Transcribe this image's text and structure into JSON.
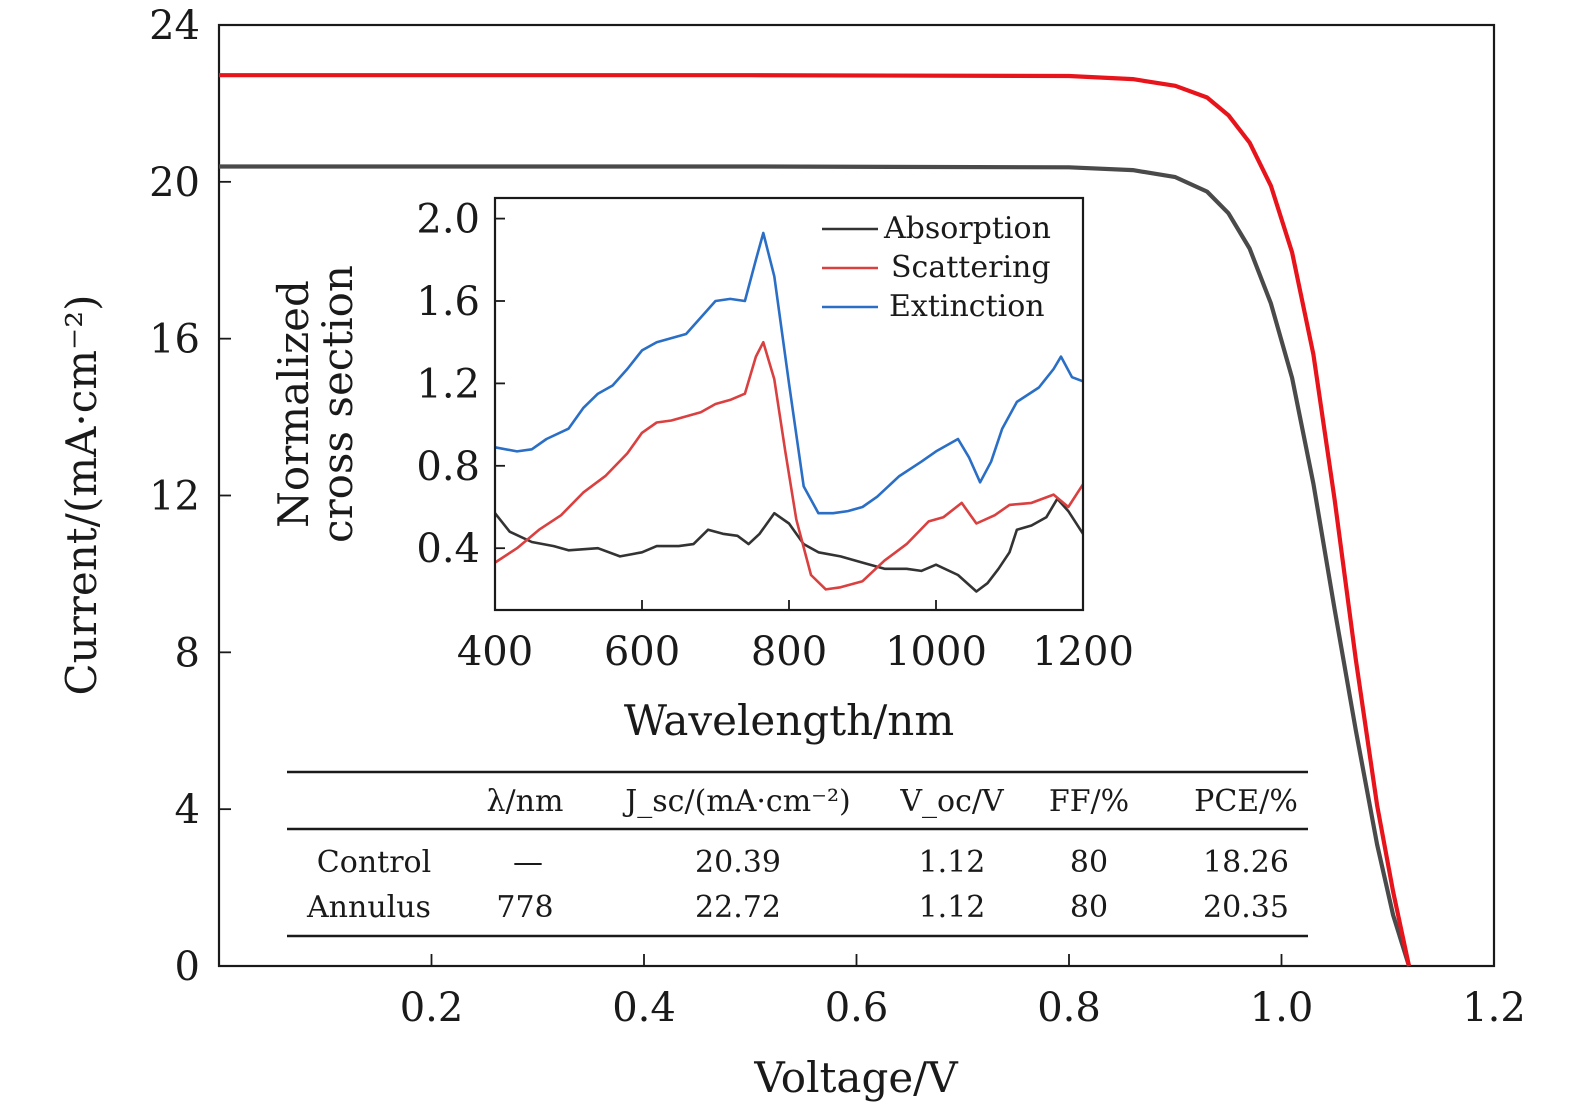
{
  "chart_data": [
    {
      "id": "jv",
      "type": "line",
      "xlabel": "Voltage/V",
      "ylabel": "Current/(mA·cm⁻²)",
      "xlim": [
        0.0,
        1.2
      ],
      "ylim": [
        0,
        24
      ],
      "xticks": [
        0.2,
        0.4,
        0.6,
        0.8,
        1.0,
        1.2
      ],
      "xtick_labels": [
        "0.2",
        "0.4",
        "0.6",
        "0.8",
        "1.0",
        "1.2"
      ],
      "yticks": [
        0,
        4,
        8,
        12,
        16,
        20,
        24
      ],
      "ytick_labels": [
        "0",
        "4",
        "8",
        "12",
        "16",
        "20",
        "24"
      ],
      "series": [
        {
          "name": "Control",
          "color": "#4a4a4a",
          "points": [
            [
              0.0,
              20.39
            ],
            [
              0.5,
              20.39
            ],
            [
              0.8,
              20.37
            ],
            [
              0.86,
              20.3
            ],
            [
              0.9,
              20.12
            ],
            [
              0.93,
              19.75
            ],
            [
              0.95,
              19.2
            ],
            [
              0.97,
              18.3
            ],
            [
              0.99,
              16.9
            ],
            [
              1.01,
              15.0
            ],
            [
              1.03,
              12.3
            ],
            [
              1.05,
              9.1
            ],
            [
              1.07,
              6.0
            ],
            [
              1.09,
              3.1
            ],
            [
              1.105,
              1.3
            ],
            [
              1.12,
              0
            ]
          ]
        },
        {
          "name": "Annulus",
          "color": "#e8141b",
          "points": [
            [
              0.0,
              22.72
            ],
            [
              0.5,
              22.72
            ],
            [
              0.8,
              22.7
            ],
            [
              0.86,
              22.62
            ],
            [
              0.9,
              22.45
            ],
            [
              0.93,
              22.15
            ],
            [
              0.95,
              21.7
            ],
            [
              0.97,
              21.0
            ],
            [
              0.99,
              19.9
            ],
            [
              1.01,
              18.2
            ],
            [
              1.03,
              15.6
            ],
            [
              1.05,
              11.9
            ],
            [
              1.07,
              7.8
            ],
            [
              1.09,
              4.1
            ],
            [
              1.105,
              1.9
            ],
            [
              1.12,
              0
            ]
          ]
        }
      ]
    },
    {
      "id": "inset",
      "type": "line",
      "xlabel": "Wavelength/nm",
      "ylabel": "Normalized cross section",
      "ylabel_lines": [
        "Normalized",
        "cross section"
      ],
      "xlim": [
        400,
        1200
      ],
      "ylim": [
        0.1,
        2.1
      ],
      "xticks": [
        400,
        600,
        800,
        1000,
        1200
      ],
      "xtick_labels": [
        "400",
        "600",
        "800",
        "1000",
        "1200"
      ],
      "yticks": [
        0.4,
        0.8,
        1.2,
        1.6,
        2.0
      ],
      "ytick_labels": [
        "0.4",
        "0.8",
        "1.2",
        "1.6",
        "2.0"
      ],
      "legend_position": "top-right",
      "series": [
        {
          "name": "Absorption",
          "color": "#333333",
          "points": [
            [
              400,
              0.57
            ],
            [
              420,
              0.48
            ],
            [
              450,
              0.43
            ],
            [
              480,
              0.41
            ],
            [
              500,
              0.39
            ],
            [
              540,
              0.4
            ],
            [
              570,
              0.36
            ],
            [
              600,
              0.38
            ],
            [
              620,
              0.41
            ],
            [
              650,
              0.41
            ],
            [
              670,
              0.42
            ],
            [
              690,
              0.49
            ],
            [
              710,
              0.47
            ],
            [
              730,
              0.46
            ],
            [
              745,
              0.42
            ],
            [
              760,
              0.47
            ],
            [
              780,
              0.57
            ],
            [
              800,
              0.52
            ],
            [
              820,
              0.42
            ],
            [
              840,
              0.38
            ],
            [
              870,
              0.36
            ],
            [
              900,
              0.33
            ],
            [
              930,
              0.3
            ],
            [
              960,
              0.3
            ],
            [
              980,
              0.29
            ],
            [
              1000,
              0.32
            ],
            [
              1030,
              0.27
            ],
            [
              1055,
              0.19
            ],
            [
              1070,
              0.23
            ],
            [
              1085,
              0.3
            ],
            [
              1100,
              0.38
            ],
            [
              1110,
              0.49
            ],
            [
              1130,
              0.51
            ],
            [
              1150,
              0.55
            ],
            [
              1165,
              0.64
            ],
            [
              1180,
              0.58
            ],
            [
              1200,
              0.47
            ]
          ]
        },
        {
          "name": "Scattering",
          "color": "#d9403f",
          "points": [
            [
              400,
              0.33
            ],
            [
              430,
              0.4
            ],
            [
              460,
              0.49
            ],
            [
              490,
              0.56
            ],
            [
              520,
              0.67
            ],
            [
              550,
              0.75
            ],
            [
              580,
              0.86
            ],
            [
              600,
              0.96
            ],
            [
              620,
              1.01
            ],
            [
              640,
              1.02
            ],
            [
              660,
              1.04
            ],
            [
              680,
              1.06
            ],
            [
              700,
              1.1
            ],
            [
              720,
              1.12
            ],
            [
              740,
              1.15
            ],
            [
              755,
              1.33
            ],
            [
              765,
              1.4
            ],
            [
              780,
              1.22
            ],
            [
              795,
              0.87
            ],
            [
              810,
              0.54
            ],
            [
              830,
              0.27
            ],
            [
              850,
              0.2
            ],
            [
              870,
              0.21
            ],
            [
              900,
              0.24
            ],
            [
              930,
              0.34
            ],
            [
              960,
              0.42
            ],
            [
              990,
              0.53
            ],
            [
              1010,
              0.55
            ],
            [
              1035,
              0.62
            ],
            [
              1055,
              0.52
            ],
            [
              1080,
              0.56
            ],
            [
              1100,
              0.61
            ],
            [
              1130,
              0.62
            ],
            [
              1160,
              0.66
            ],
            [
              1180,
              0.6
            ],
            [
              1200,
              0.71
            ]
          ]
        },
        {
          "name": "Extinction",
          "color": "#2a6ec6",
          "points": [
            [
              400,
              0.89
            ],
            [
              430,
              0.87
            ],
            [
              450,
              0.88
            ],
            [
              470,
              0.93
            ],
            [
              500,
              0.98
            ],
            [
              520,
              1.08
            ],
            [
              540,
              1.15
            ],
            [
              560,
              1.19
            ],
            [
              580,
              1.27
            ],
            [
              600,
              1.36
            ],
            [
              620,
              1.4
            ],
            [
              640,
              1.42
            ],
            [
              660,
              1.44
            ],
            [
              680,
              1.52
            ],
            [
              700,
              1.6
            ],
            [
              720,
              1.61
            ],
            [
              740,
              1.6
            ],
            [
              755,
              1.8
            ],
            [
              765,
              1.93
            ],
            [
              780,
              1.72
            ],
            [
              800,
              1.2
            ],
            [
              820,
              0.7
            ],
            [
              840,
              0.57
            ],
            [
              860,
              0.57
            ],
            [
              880,
              0.58
            ],
            [
              900,
              0.6
            ],
            [
              920,
              0.65
            ],
            [
              950,
              0.75
            ],
            [
              980,
              0.82
            ],
            [
              1000,
              0.87
            ],
            [
              1030,
              0.93
            ],
            [
              1045,
              0.84
            ],
            [
              1060,
              0.72
            ],
            [
              1075,
              0.82
            ],
            [
              1090,
              0.98
            ],
            [
              1110,
              1.11
            ],
            [
              1140,
              1.18
            ],
            [
              1160,
              1.27
            ],
            [
              1170,
              1.33
            ],
            [
              1185,
              1.23
            ],
            [
              1200,
              1.21
            ]
          ]
        }
      ]
    }
  ],
  "table": {
    "headers": [
      "λ/nm",
      "J_sc/(mA·cm⁻²)",
      "V_oc/V",
      "FF/%",
      "PCE/%"
    ],
    "rows": [
      {
        "label": "Control",
        "lambda": "—",
        "jsc": "20.39",
        "voc": "1.12",
        "ff": "80",
        "pce": "18.26"
      },
      {
        "label": "Annulus",
        "lambda": "778",
        "jsc": "22.72",
        "voc": "1.12",
        "ff": "80",
        "pce": "20.35"
      }
    ]
  }
}
